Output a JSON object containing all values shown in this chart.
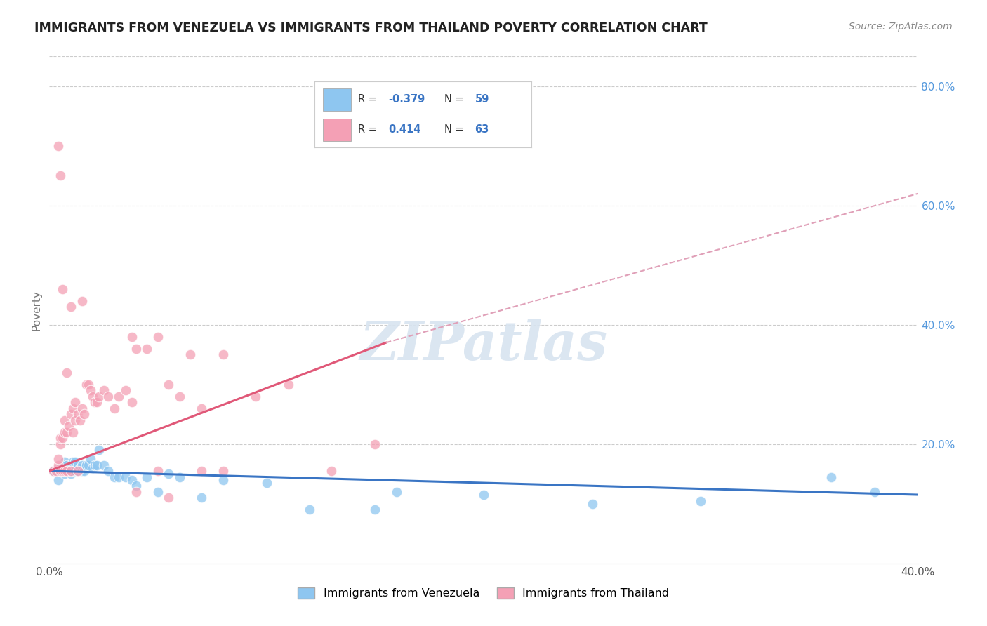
{
  "title": "IMMIGRANTS FROM VENEZUELA VS IMMIGRANTS FROM THAILAND POVERTY CORRELATION CHART",
  "source": "Source: ZipAtlas.com",
  "ylabel": "Poverty",
  "xlim": [
    0.0,
    0.4
  ],
  "ylim": [
    0.0,
    0.85
  ],
  "venezuela_R": "-0.379",
  "venezuela_N": "59",
  "thailand_R": "0.414",
  "thailand_N": "63",
  "venezuela_color": "#8EC6F0",
  "thailand_color": "#F4A0B5",
  "venezuela_line_color": "#3A75C4",
  "thailand_line_color": "#E05878",
  "dashed_line_color": "#E0A0B8",
  "watermark_color": "#D8E4F0",
  "background_color": "#ffffff",
  "ven_x": [
    0.002,
    0.003,
    0.004,
    0.004,
    0.005,
    0.005,
    0.005,
    0.006,
    0.006,
    0.007,
    0.007,
    0.007,
    0.008,
    0.008,
    0.008,
    0.009,
    0.009,
    0.01,
    0.01,
    0.01,
    0.011,
    0.011,
    0.012,
    0.012,
    0.013,
    0.013,
    0.014,
    0.015,
    0.015,
    0.016,
    0.017,
    0.018,
    0.019,
    0.02,
    0.021,
    0.022,
    0.023,
    0.025,
    0.027,
    0.03,
    0.032,
    0.035,
    0.038,
    0.04,
    0.045,
    0.05,
    0.055,
    0.06,
    0.07,
    0.08,
    0.1,
    0.12,
    0.15,
    0.16,
    0.2,
    0.25,
    0.3,
    0.36,
    0.38
  ],
  "ven_y": [
    0.155,
    0.155,
    0.14,
    0.16,
    0.155,
    0.155,
    0.16,
    0.155,
    0.16,
    0.15,
    0.165,
    0.17,
    0.155,
    0.16,
    0.165,
    0.155,
    0.16,
    0.15,
    0.155,
    0.165,
    0.165,
    0.17,
    0.155,
    0.17,
    0.155,
    0.165,
    0.16,
    0.155,
    0.165,
    0.155,
    0.165,
    0.165,
    0.175,
    0.16,
    0.165,
    0.165,
    0.19,
    0.165,
    0.155,
    0.145,
    0.145,
    0.145,
    0.14,
    0.13,
    0.145,
    0.12,
    0.15,
    0.145,
    0.11,
    0.14,
    0.135,
    0.09,
    0.09,
    0.12,
    0.115,
    0.1,
    0.105,
    0.145,
    0.12
  ],
  "thai_x": [
    0.002,
    0.003,
    0.004,
    0.004,
    0.005,
    0.005,
    0.005,
    0.006,
    0.006,
    0.007,
    0.007,
    0.007,
    0.008,
    0.008,
    0.009,
    0.01,
    0.01,
    0.011,
    0.011,
    0.012,
    0.012,
    0.013,
    0.013,
    0.014,
    0.015,
    0.016,
    0.017,
    0.018,
    0.019,
    0.02,
    0.021,
    0.022,
    0.023,
    0.025,
    0.027,
    0.03,
    0.032,
    0.035,
    0.038,
    0.04,
    0.045,
    0.05,
    0.055,
    0.06,
    0.07,
    0.08,
    0.095,
    0.11,
    0.13,
    0.15,
    0.038,
    0.05,
    0.065,
    0.08,
    0.005,
    0.01,
    0.015,
    0.07,
    0.04,
    0.055,
    0.008,
    0.006,
    0.004
  ],
  "thai_y": [
    0.155,
    0.155,
    0.165,
    0.175,
    0.155,
    0.2,
    0.21,
    0.155,
    0.21,
    0.155,
    0.22,
    0.24,
    0.155,
    0.22,
    0.23,
    0.155,
    0.25,
    0.22,
    0.26,
    0.24,
    0.27,
    0.155,
    0.25,
    0.24,
    0.26,
    0.25,
    0.3,
    0.3,
    0.29,
    0.28,
    0.27,
    0.27,
    0.28,
    0.29,
    0.28,
    0.26,
    0.28,
    0.29,
    0.27,
    0.36,
    0.36,
    0.155,
    0.3,
    0.28,
    0.26,
    0.155,
    0.28,
    0.3,
    0.155,
    0.2,
    0.38,
    0.38,
    0.35,
    0.35,
    0.65,
    0.43,
    0.44,
    0.155,
    0.12,
    0.11,
    0.32,
    0.46,
    0.7
  ]
}
